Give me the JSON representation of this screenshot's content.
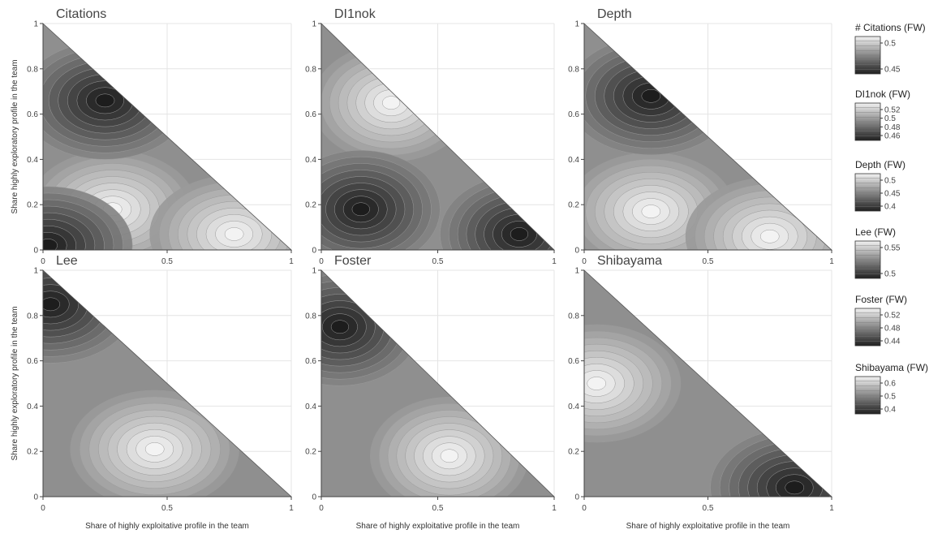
{
  "chart_data": [
    {
      "type": "contour",
      "title": "Citations",
      "xlabel": "",
      "ylabel": "Share highly exploratory profile in the team",
      "xlim": [
        0,
        1
      ],
      "ylim": [
        0,
        1
      ],
      "x_ticks": [
        "0",
        "0.5",
        "1"
      ],
      "y_ticks": [
        "0",
        "0.2",
        "0.4",
        "0.6",
        "0.8",
        "1"
      ],
      "colorscale": "greys",
      "peaks": [
        {
          "x": 0.28,
          "y": 0.18,
          "level": "high"
        },
        {
          "x": 0.77,
          "y": 0.07,
          "level": "high"
        },
        {
          "x": 0.25,
          "y": 0.66,
          "level": "low"
        },
        {
          "x": 0.02,
          "y": 0.02,
          "level": "low"
        }
      ]
    },
    {
      "type": "contour",
      "title": "DI1nok",
      "xlabel": "",
      "ylabel": "",
      "xlim": [
        0,
        1
      ],
      "ylim": [
        0,
        1
      ],
      "x_ticks": [
        "0",
        "0.5",
        "1"
      ],
      "y_ticks": [
        "0",
        "0.2",
        "0.4",
        "0.6",
        "0.8",
        "1"
      ],
      "colorscale": "greys",
      "peaks": [
        {
          "x": 0.3,
          "y": 0.65,
          "level": "high"
        },
        {
          "x": 0.85,
          "y": 0.07,
          "level": "low"
        },
        {
          "x": 0.17,
          "y": 0.18,
          "level": "low"
        }
      ]
    },
    {
      "type": "contour",
      "title": "Depth",
      "xlabel": "",
      "ylabel": "",
      "xlim": [
        0,
        1
      ],
      "ylim": [
        0,
        1
      ],
      "x_ticks": [
        "0",
        "0.5",
        "1"
      ],
      "y_ticks": [
        "0",
        "0.2",
        "0.4",
        "0.6",
        "0.8",
        "1"
      ],
      "colorscale": "greys",
      "peaks": [
        {
          "x": 0.27,
          "y": 0.17,
          "level": "high"
        },
        {
          "x": 0.75,
          "y": 0.06,
          "level": "high"
        },
        {
          "x": 0.27,
          "y": 0.68,
          "level": "low"
        }
      ]
    },
    {
      "type": "contour",
      "title": "Lee",
      "xlabel": "Share of highly exploitative profile in the team",
      "ylabel": "Share highly exploratory profile in the team",
      "xlim": [
        0,
        1
      ],
      "ylim": [
        0,
        1
      ],
      "x_ticks": [
        "0",
        "0.5",
        "1"
      ],
      "y_ticks": [
        "0",
        "0.2",
        "0.4",
        "0.6",
        "0.8",
        "1"
      ],
      "colorscale": "greys",
      "peaks": [
        {
          "x": 0.45,
          "y": 0.21,
          "level": "high"
        },
        {
          "x": 0.03,
          "y": 0.85,
          "level": "low"
        }
      ]
    },
    {
      "type": "contour",
      "title": "Foster",
      "xlabel": "Share of highly exploitative profile in the team",
      "ylabel": "",
      "xlim": [
        0,
        1
      ],
      "ylim": [
        0,
        1
      ],
      "x_ticks": [
        "0",
        "0.5",
        "1"
      ],
      "y_ticks": [
        "0",
        "0.2",
        "0.4",
        "0.6",
        "0.8",
        "1"
      ],
      "colorscale": "greys",
      "peaks": [
        {
          "x": 0.55,
          "y": 0.18,
          "level": "high"
        },
        {
          "x": 0.08,
          "y": 0.75,
          "level": "low"
        }
      ]
    },
    {
      "type": "contour",
      "title": "Shibayama",
      "xlabel": "Share of highly exploitative profile in the team",
      "ylabel": "",
      "xlim": [
        0,
        1
      ],
      "ylim": [
        0,
        1
      ],
      "x_ticks": [
        "0",
        "0.5",
        "1"
      ],
      "y_ticks": [
        "0",
        "0.2",
        "0.4",
        "0.6",
        "0.8",
        "1"
      ],
      "colorscale": "greys",
      "peaks": [
        {
          "x": 0.05,
          "y": 0.5,
          "level": "high"
        },
        {
          "x": 0.85,
          "y": 0.04,
          "level": "low"
        }
      ]
    }
  ],
  "legend": [
    {
      "title": "# Citations (FW)",
      "ticks": [
        "0.5",
        "0.45"
      ]
    },
    {
      "title": "DI1nok (FW)",
      "ticks": [
        "0.52",
        "0.5",
        "0.48",
        "0.46"
      ]
    },
    {
      "title": "Depth (FW)",
      "ticks": [
        "0.5",
        "0.45",
        "0.4"
      ]
    },
    {
      "title": "Lee (FW)",
      "ticks": [
        "0.55",
        "0.5"
      ]
    },
    {
      "title": "Foster (FW)",
      "ticks": [
        "0.52",
        "0.48",
        "0.44"
      ]
    },
    {
      "title": "Shibayama (FW)",
      "ticks": [
        "0.6",
        "0.5",
        "0.4"
      ]
    }
  ]
}
